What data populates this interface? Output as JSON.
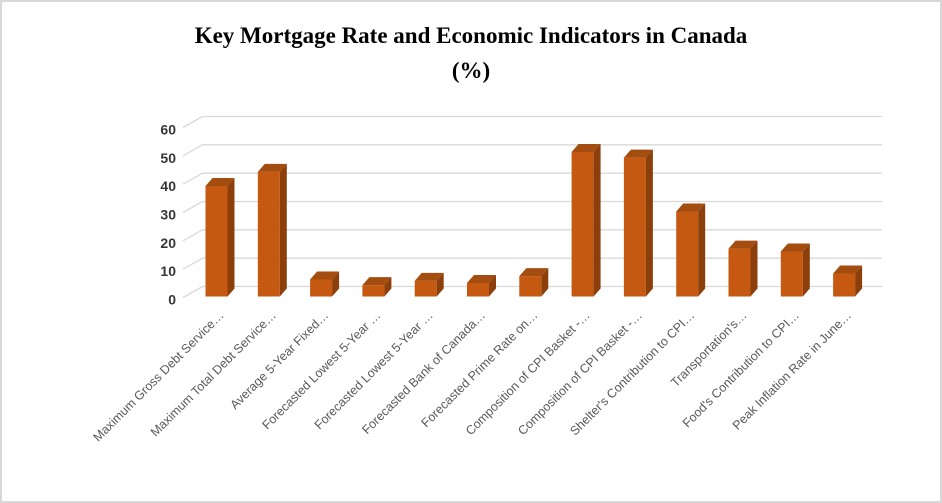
{
  "window": {
    "background": "#ffffff",
    "border_color": "#d8d8d8"
  },
  "chart_data": {
    "type": "bar",
    "style": "3d-column",
    "title": "Key Mortgage Rate and Economic Indicators in Canada (%)",
    "title_lines": [
      "Key Mortgage Rate and Economic Indicators in Canada",
      "(%)"
    ],
    "categories": [
      "Maximum Gross Debt Service…",
      "Maximum Total Debt Service…",
      "Average 5-Year Fixed…",
      "Forecasted Lowest 5-Year …",
      "Forecasted Lowest 5-Year …",
      "Forecasted Bank of Canada…",
      "Forecasted Prime Rate on…",
      "Composition of CPI Basket -…",
      "Composition of CPI Basket -…",
      "Shelter's Contribution to CPI…",
      "Transportation's…",
      "Food's Contribution to CPI…",
      "Peak Inflation Rate in June…"
    ],
    "values": [
      39,
      44,
      6,
      4,
      5.5,
      4.75,
      7.2,
      51,
      49,
      30,
      16.9,
      15.9,
      8.1
    ],
    "xlabel": "",
    "ylabel": "",
    "ylim": [
      0,
      60
    ],
    "yticks": [
      0,
      10,
      20,
      30,
      40,
      50,
      60
    ],
    "grid": true,
    "legend_position": "none",
    "colors": {
      "bar_front": "#c65911",
      "bar_top": "#a34e10",
      "bar_side": "#8c3f0b",
      "gridline": "#d9d9d9",
      "category_label": "#595959",
      "ytick_label": "#363636"
    }
  }
}
